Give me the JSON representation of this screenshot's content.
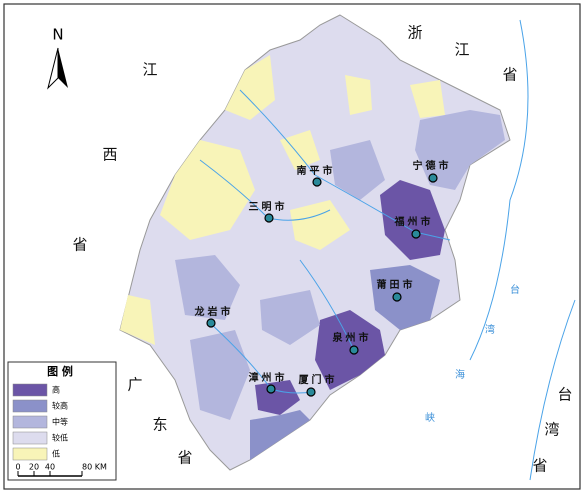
{
  "north": "N",
  "provinces": [
    {
      "name": "江西省",
      "chars": [
        "江",
        "西",
        "省"
      ]
    },
    {
      "name": "浙江省",
      "chars": [
        "浙",
        "江",
        "省"
      ]
    },
    {
      "name": "广东省",
      "chars": [
        "广",
        "东",
        "省"
      ]
    },
    {
      "name": "台湾省",
      "chars": [
        "台",
        "湾",
        "省"
      ]
    }
  ],
  "strait": [
    "台",
    "湾",
    "海",
    "峡"
  ],
  "cities": [
    "南平市",
    "宁德市",
    "三明市",
    "福州市",
    "莆田市",
    "龙岩市",
    "泉州市",
    "漳州市",
    "厦门市"
  ],
  "legend": {
    "title": "图 例",
    "items": [
      {
        "label": "高",
        "color": "#6b55a6"
      },
      {
        "label": "较高",
        "color": "#8b91c9"
      },
      {
        "label": "中等",
        "color": "#b3b6dd"
      },
      {
        "label": "较低",
        "color": "#dddcee"
      },
      {
        "label": "低",
        "color": "#f8f4b8"
      }
    ]
  },
  "scale_bar": [
    "0",
    "20",
    "40",
    "80 KM"
  ]
}
